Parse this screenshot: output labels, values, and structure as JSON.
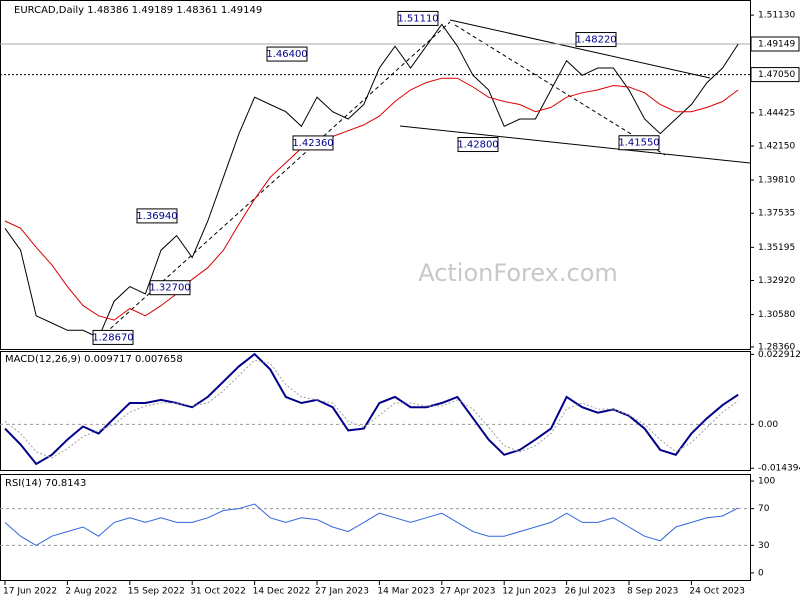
{
  "chart_data": [
    {
      "type": "line",
      "title": "EURCAD,Daily  1.48386 1.49189 1.48361 1.49149",
      "watermark": "ActionForex.com",
      "categories": [
        "17 Jun 2022",
        null,
        null,
        null,
        "2 Aug 2022",
        null,
        null,
        null,
        "15 Sep 2022",
        null,
        null,
        null,
        "31 Oct 2022",
        null,
        null,
        null,
        "14 Dec 2022",
        null,
        null,
        null,
        "27 Jan 2023",
        null,
        null,
        null,
        "14 Mar 2023",
        null,
        null,
        null,
        "27 Apr 2023",
        null,
        null,
        null,
        "12 Jun 2023",
        null,
        null,
        null,
        "26 Jul 2023",
        null,
        null,
        null,
        "8 Sep 2023",
        null,
        null,
        null,
        "24 Oct 2023",
        null,
        null,
        null
      ],
      "series": [
        {
          "name": "EURCAD",
          "color": "#000000",
          "values": [
            1.365,
            1.35,
            1.305,
            1.3,
            1.295,
            1.295,
            1.29,
            1.315,
            1.325,
            1.32,
            1.35,
            1.36,
            1.345,
            1.37,
            1.4,
            1.43,
            1.455,
            1.45,
            1.445,
            1.435,
            1.455,
            1.445,
            1.44,
            1.45,
            1.475,
            1.49,
            1.475,
            1.49,
            1.505,
            1.49,
            1.47,
            1.46,
            1.435,
            1.44,
            1.44,
            1.46,
            1.48,
            1.47,
            1.475,
            1.475,
            1.46,
            1.44,
            1.43,
            1.44,
            1.45,
            1.465,
            1.475,
            1.4915
          ]
        },
        {
          "name": "MA",
          "color": "#dd0000",
          "values": [
            1.37,
            1.365,
            1.352,
            1.34,
            1.325,
            1.312,
            1.305,
            1.302,
            1.31,
            1.305,
            1.312,
            1.32,
            1.33,
            1.338,
            1.35,
            1.368,
            1.385,
            1.4,
            1.41,
            1.42,
            1.425,
            1.428,
            1.432,
            1.436,
            1.442,
            1.452,
            1.46,
            1.465,
            1.468,
            1.468,
            1.462,
            1.455,
            1.452,
            1.45,
            1.445,
            1.448,
            1.455,
            1.458,
            1.46,
            1.463,
            1.462,
            1.458,
            1.45,
            1.445,
            1.445,
            1.448,
            1.452,
            1.46
          ]
        }
      ],
      "ylim": [
        1.2815,
        1.521
      ],
      "yticks": [
        {
          "value": 1.5113,
          "label": "1.51130"
        },
        {
          "value": 1.44425,
          "label": "1.44425"
        },
        {
          "value": 1.4215,
          "label": "1.42150"
        },
        {
          "value": 1.3981,
          "label": "1.39810"
        },
        {
          "value": 1.37535,
          "label": "1.37535"
        },
        {
          "value": 1.35195,
          "label": "1.35195"
        },
        {
          "value": 1.3292,
          "label": "1.32920"
        },
        {
          "value": 1.3058,
          "label": "1.30580"
        },
        {
          "value": 1.2836,
          "label": "1.28360"
        }
      ],
      "hlines": [
        {
          "value": 1.49149,
          "label": "1.49149",
          "style": "solid"
        },
        {
          "value": 1.4705,
          "label": "1.47050",
          "style": "dotted"
        }
      ],
      "annotations": [
        {
          "value": 1.5111,
          "label": "1.51110"
        },
        {
          "value": 1.464,
          "label": "1.46400"
        },
        {
          "value": 1.4236,
          "label": "1.42360"
        },
        {
          "value": 1.3694,
          "label": "1.36940"
        },
        {
          "value": 1.327,
          "label": "1.32700"
        },
        {
          "value": 1.2867,
          "label": "1.28670"
        },
        {
          "value": 1.428,
          "label": "1.42800"
        },
        {
          "value": 1.4822,
          "label": "1.48220"
        },
        {
          "value": 1.4155,
          "label": "1.41550"
        }
      ]
    },
    {
      "type": "line",
      "title": "MACD(12,26,9) 0.009717 0.007658",
      "series": [
        {
          "name": "MACD",
          "color": "#00008b",
          "values": [
            -0.0014,
            -0.0066,
            -0.013,
            -0.01,
            -0.005,
            -0.0007,
            -0.003,
            0.002,
            0.007,
            0.007,
            0.008,
            0.007,
            0.0056,
            0.009,
            0.014,
            0.019,
            0.023,
            0.018,
            0.009,
            0.007,
            0.008,
            0.0056,
            -0.002,
            -0.0014,
            0.007,
            0.009,
            0.0056,
            0.0056,
            0.007,
            0.009,
            0.002,
            -0.005,
            -0.01,
            -0.0084,
            -0.005,
            -0.0014,
            0.009,
            0.0056,
            0.0038,
            0.0049,
            0.0028,
            -0.0014,
            -0.0084,
            -0.01,
            -0.003,
            0.002,
            0.0063,
            0.0097
          ]
        },
        {
          "name": "Signal",
          "color": "#a0a0a0",
          "values": [
            0.001,
            -0.003,
            -0.009,
            -0.011,
            -0.008,
            -0.004,
            -0.002,
            0,
            0.004,
            0.006,
            0.007,
            0.007,
            0.006,
            0.007,
            0.011,
            0.016,
            0.021,
            0.02,
            0.013,
            0.009,
            0.008,
            0.007,
            0.001,
            -0.001,
            0.003,
            0.007,
            0.007,
            0.006,
            0.006,
            0.008,
            0.005,
            -0.001,
            -0.007,
            -0.009,
            -0.007,
            -0.003,
            0.005,
            0.007,
            0.005,
            0.005,
            0.003,
            0,
            -0.005,
            -0.009,
            -0.006,
            -0.001,
            0.004,
            0.0077
          ]
        }
      ],
      "ylim": [
        -0.0153,
        0.0237
      ],
      "yticks": [
        0.022912,
        {
          "value": 0,
          "label": "0.00"
        },
        -0.014394
      ],
      "levels": [
        0
      ]
    },
    {
      "type": "line",
      "title": "RSI(14) 70.8143",
      "series": [
        {
          "name": "RSI",
          "color": "#3366dd",
          "values": [
            55,
            40,
            30,
            40,
            45,
            50,
            40,
            55,
            60,
            55,
            60,
            55,
            55,
            60,
            68,
            70,
            75,
            60,
            55,
            60,
            58,
            50,
            45,
            55,
            65,
            60,
            55,
            60,
            65,
            55,
            45,
            40,
            40,
            45,
            50,
            55,
            65,
            55,
            55,
            60,
            50,
            40,
            35,
            50,
            55,
            60,
            62,
            70.8143
          ]
        }
      ],
      "ylim": [
        -8.8,
        106.6
      ],
      "yticks": [
        100,
        70,
        30,
        0
      ],
      "levels": [
        70,
        30
      ]
    }
  ]
}
